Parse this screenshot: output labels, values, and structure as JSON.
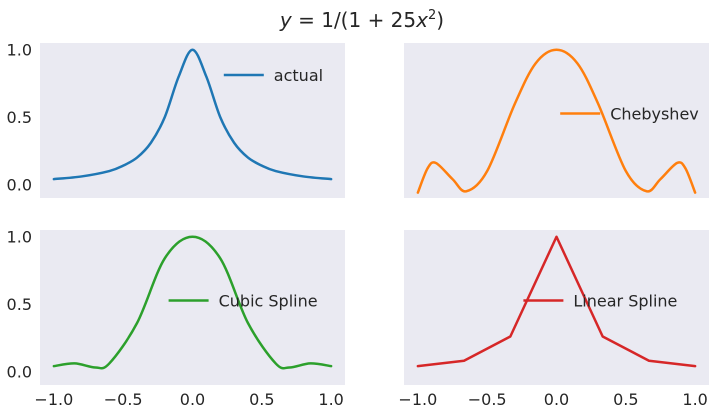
{
  "chart_data": {
    "type": "line",
    "title": "y = 1/(1 + 25x²)",
    "title_parts": {
      "lead": "y",
      "mid": " = 1/(1 + 25",
      "var": "x",
      "sup": "2",
      "close": ")"
    },
    "panels": [
      {
        "series": [
          {
            "name": "actual",
            "color": "#1f77b4",
            "curve": "smooth",
            "x": [
              -1.0,
              -0.8,
              -0.6,
              -0.5,
              -0.4,
              -0.3,
              -0.2,
              -0.1,
              0.0,
              0.1,
              0.2,
              0.3,
              0.4,
              0.5,
              0.6,
              0.8,
              1.0
            ],
            "y": [
              0.04,
              0.06,
              0.1,
              0.14,
              0.2,
              0.31,
              0.5,
              0.8,
              1.0,
              0.8,
              0.5,
              0.31,
              0.2,
              0.14,
              0.1,
              0.06,
              0.04
            ]
          }
        ],
        "legend": "upper right",
        "ylim": [
          -0.1,
          1.05
        ],
        "yticks": [
          0.0,
          0.5,
          1.0
        ],
        "ytick_labels": [
          "0.0",
          "0.5",
          "1.0"
        ],
        "xlim": [
          -1.1,
          1.1
        ],
        "xticks": [],
        "xtick_labels": []
      },
      {
        "series": [
          {
            "name": "Chebyshev",
            "color": "#ff7f0e",
            "curve": "smooth",
            "x": [
              -1.0,
              -0.93,
              -0.87,
              -0.75,
              -0.65,
              -0.5,
              -0.3,
              -0.15,
              0.0,
              0.15,
              0.3,
              0.5,
              0.65,
              0.75,
              0.87,
              0.93,
              1.0
            ],
            "y": [
              -0.06,
              0.12,
              0.16,
              0.04,
              -0.05,
              0.1,
              0.6,
              0.9,
              1.0,
              0.9,
              0.6,
              0.1,
              -0.05,
              0.04,
              0.16,
              0.12,
              -0.06
            ]
          }
        ],
        "legend": "center right",
        "ylim": [
          -0.1,
          1.05
        ],
        "yticks": [],
        "ytick_labels": [],
        "xlim": [
          -1.1,
          1.1
        ],
        "xticks": [],
        "xtick_labels": []
      },
      {
        "series": [
          {
            "name": "Cubic Spline",
            "color": "#2ca02c",
            "curve": "smooth",
            "x": [
              -1.0,
              -0.85,
              -0.7,
              -0.6,
              -0.4,
              -0.2,
              0.0,
              0.2,
              0.4,
              0.6,
              0.7,
              0.85,
              1.0
            ],
            "y": [
              0.04,
              0.06,
              0.03,
              0.06,
              0.36,
              0.84,
              1.0,
              0.84,
              0.36,
              0.06,
              0.03,
              0.06,
              0.04
            ]
          }
        ],
        "legend": "center right",
        "ylim": [
          -0.1,
          1.05
        ],
        "yticks": [
          0.0,
          0.5,
          1.0
        ],
        "ytick_labels": [
          "0.0",
          "0.5",
          "1.0"
        ],
        "xlim": [
          -1.1,
          1.1
        ],
        "xticks": [
          -1.0,
          -0.5,
          0.0,
          0.5,
          1.0
        ],
        "xtick_labels": [
          "−1.0",
          "−0.5",
          "0.0",
          "0.5",
          "1.0"
        ]
      },
      {
        "series": [
          {
            "name": "Linear Spline",
            "color": "#d62728",
            "curve": "linear",
            "x": [
              -1.0,
              -0.667,
              -0.333,
              0.0,
              0.333,
              0.667,
              1.0
            ],
            "y": [
              0.04,
              0.08,
              0.26,
              1.0,
              0.26,
              0.08,
              0.04
            ]
          }
        ],
        "legend": "center right",
        "ylim": [
          -0.1,
          1.05
        ],
        "yticks": [],
        "ytick_labels": [],
        "xlim": [
          -1.1,
          1.1
        ],
        "xticks": [
          -1.0,
          -0.5,
          0.0,
          0.5,
          1.0
        ],
        "xtick_labels": [
          "−1.0",
          "−0.5",
          "0.0",
          "0.5",
          "1.0"
        ]
      }
    ],
    "grid": false,
    "background": "#eaeaf2",
    "sharex": true,
    "sharey": true
  }
}
